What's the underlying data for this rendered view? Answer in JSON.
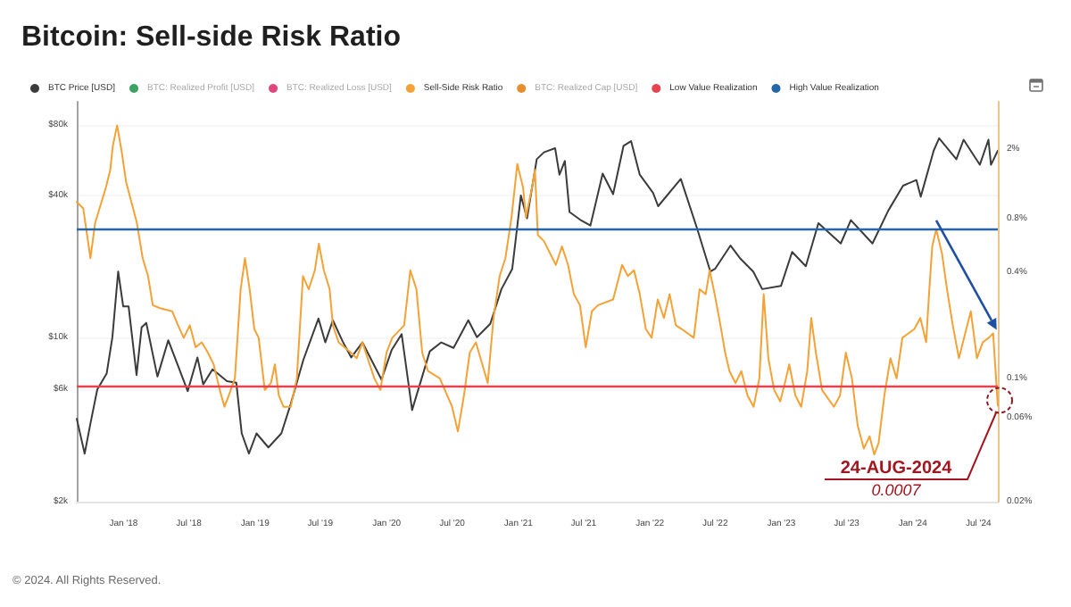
{
  "chart_data": [
    {
      "type": "line",
      "title": "Bitcoin: Sell-side Risk Ratio",
      "annotations": [
        "© 2024. All Rights Reserved."
      ],
      "xlim": [
        "2017-08-24",
        "2024-08-24"
      ],
      "xticks": [
        {
          "value": "2018-01-01",
          "label": "Jan '18"
        },
        {
          "value": "2018-07-01",
          "label": "Jul '18"
        },
        {
          "value": "2019-01-01",
          "label": "Jan '19"
        },
        {
          "value": "2019-07-01",
          "label": "Jul '19"
        },
        {
          "value": "2020-01-01",
          "label": "Jan '20"
        },
        {
          "value": "2020-07-01",
          "label": "Jul '20"
        },
        {
          "value": "2021-01-01",
          "label": "Jan '21"
        },
        {
          "value": "2021-07-01",
          "label": "Jul '21"
        },
        {
          "value": "2022-01-01",
          "label": "Jan '22"
        },
        {
          "value": "2022-07-01",
          "label": "Jul '22"
        },
        {
          "value": "2023-01-01",
          "label": "Jan '23"
        },
        {
          "value": "2023-07-01",
          "label": "Jul '23"
        },
        {
          "value": "2024-01-01",
          "label": "Jan '24"
        },
        {
          "value": "2024-07-01",
          "label": "Jul '24"
        }
      ],
      "ylim": [
        2000,
        100000
      ],
      "yticks": [
        {
          "value": 2000,
          "label": "$2k"
        },
        {
          "value": 6000,
          "label": "$6k"
        },
        {
          "value": 10000,
          "label": "$10k"
        },
        {
          "value": 40000,
          "label": "$40k"
        },
        {
          "value": 80000,
          "label": "$80k"
        }
      ],
      "log": "y",
      "grid": "y",
      "legend": "top",
      "marker": "none",
      "series": [
        {
          "name": "BTC Price [USD]",
          "color": "#3b3b3b",
          "x": [
            "2017-08-24",
            "2017-09-15",
            "2017-10-01",
            "2017-10-20",
            "2017-11-15",
            "2017-12-01",
            "2017-12-17",
            "2017-12-31",
            "2018-01-15",
            "2018-02-06",
            "2018-02-20",
            "2018-03-05",
            "2018-04-05",
            "2018-05-05",
            "2018-06-28",
            "2018-07-25",
            "2018-08-10",
            "2018-09-05",
            "2018-10-15",
            "2018-11-10",
            "2018-11-25",
            "2018-12-15",
            "2019-01-05",
            "2019-02-07",
            "2019-03-15",
            "2019-04-10",
            "2019-05-15",
            "2019-06-26",
            "2019-07-15",
            "2019-08-05",
            "2019-09-01",
            "2019-09-25",
            "2019-10-26",
            "2019-12-18",
            "2020-01-15",
            "2020-02-12",
            "2020-03-12",
            "2020-04-30",
            "2020-06-01",
            "2020-07-05",
            "2020-08-15",
            "2020-09-08",
            "2020-10-15",
            "2020-11-15",
            "2020-12-15",
            "2021-01-08",
            "2021-01-25",
            "2021-02-21",
            "2021-03-13",
            "2021-04-13",
            "2021-04-25",
            "2021-05-10",
            "2021-05-23",
            "2021-06-22",
            "2021-07-20",
            "2021-08-23",
            "2021-09-21",
            "2021-10-20",
            "2021-11-10",
            "2021-12-04",
            "2022-01-10",
            "2022-01-24",
            "2022-03-28",
            "2022-05-12",
            "2022-06-18",
            "2022-07-01",
            "2022-08-13",
            "2022-09-10",
            "2022-10-15",
            "2022-11-09",
            "2022-12-31",
            "2023-01-31",
            "2023-03-10",
            "2023-04-14",
            "2023-06-15",
            "2023-07-13",
            "2023-09-11",
            "2023-10-25",
            "2023-12-05",
            "2024-01-11",
            "2024-01-23",
            "2024-02-28",
            "2024-03-14",
            "2024-05-01",
            "2024-05-21",
            "2024-07-05",
            "2024-07-29",
            "2024-08-05",
            "2024-08-24"
          ],
          "values": [
            4500,
            3200,
            4300,
            6000,
            7000,
            10000,
            19000,
            13500,
            13500,
            6900,
            11000,
            11500,
            6800,
            9700,
            5900,
            8200,
            6300,
            7300,
            6500,
            6400,
            3900,
            3200,
            3900,
            3400,
            3900,
            5200,
            8000,
            12000,
            9500,
            11800,
            9600,
            8200,
            9500,
            6600,
            8800,
            10300,
            4900,
            8700,
            9500,
            9000,
            11800,
            10000,
            11400,
            16000,
            19500,
            40000,
            32000,
            57000,
            61000,
            63500,
            49000,
            56000,
            34000,
            31500,
            29800,
            49500,
            40500,
            65000,
            68000,
            49000,
            41000,
            36000,
            47000,
            29000,
            19000,
            19500,
            24500,
            21500,
            19000,
            16000,
            16500,
            23000,
            20000,
            30500,
            25000,
            31400,
            25000,
            34500,
            44000,
            46500,
            39500,
            62000,
            70000,
            57000,
            69000,
            54000,
            69000,
            54000,
            62000
          ]
        },
        {
          "name": "BTC: Realized Profit [USD]",
          "color": "#3aa35f"
        },
        {
          "name": "BTC: Realized Loss [USD]",
          "color": "#e0457b"
        }
      ]
    },
    {
      "type": "line",
      "annotations": [
        {
          "text": "24-AUG-2024",
          "x": "2024-08-24",
          "y": 0.07
        },
        {
          "text": "0.0007",
          "x": "2024-08-24",
          "y": 0.07
        }
      ],
      "xlim": [
        "2017-08-24",
        "2024-08-24"
      ],
      "ylim": [
        0.02,
        3.7
      ],
      "yticks": [
        {
          "value": 0.02,
          "label": "0.02%"
        },
        {
          "value": 0.06,
          "label": "0.06%"
        },
        {
          "value": 0.1,
          "label": "0.1%"
        },
        {
          "value": 0.4,
          "label": "0.4%"
        },
        {
          "value": 0.8,
          "label": "0.8%"
        },
        {
          "value": 2,
          "label": "2%"
        }
      ],
      "tick_labels": "y",
      "log": "y",
      "legend": "top",
      "marker": "none",
      "series": [
        {
          "name": "Sell-Side Risk Ratio",
          "color": "#f4a236",
          "x": [
            "2017-08-24",
            "2017-09-11",
            "2017-10-01",
            "2017-10-14",
            "2017-11-13",
            "2017-11-25",
            "2017-12-02",
            "2017-12-14",
            "2017-12-27",
            "2018-01-08",
            "2018-01-21",
            "2018-02-07",
            "2018-02-23",
            "2018-03-10",
            "2018-03-23",
            "2018-04-12",
            "2018-05-16",
            "2018-06-01",
            "2018-06-17",
            "2018-07-04",
            "2018-07-20",
            "2018-08-06",
            "2018-08-23",
            "2018-09-08",
            "2018-09-25",
            "2018-10-08",
            "2018-10-20",
            "2018-11-06",
            "2018-11-22",
            "2018-12-04",
            "2018-12-17",
            "2018-12-30",
            "2019-01-11",
            "2019-01-28",
            "2019-02-14",
            "2019-02-25",
            "2019-03-08",
            "2019-03-21",
            "2019-04-10",
            "2019-04-27",
            "2019-05-14",
            "2019-05-30",
            "2019-06-16",
            "2019-06-27",
            "2019-07-11",
            "2019-07-27",
            "2019-08-05",
            "2019-08-21",
            "2019-09-24",
            "2019-10-10",
            "2019-10-26",
            "2019-11-28",
            "2019-12-15",
            "2020-01-01",
            "2020-01-17",
            "2020-02-19",
            "2020-03-07",
            "2020-03-24",
            "2020-04-09",
            "2020-04-25",
            "2020-05-28",
            "2020-07-01",
            "2020-07-17",
            "2020-08-03",
            "2020-08-19",
            "2020-09-05",
            "2020-10-08",
            "2020-10-24",
            "2020-11-10",
            "2020-11-26",
            "2020-12-13",
            "2020-12-29",
            "2021-01-14",
            "2021-01-22",
            "2021-02-08",
            "2021-02-16",
            "2021-02-24",
            "2021-03-13",
            "2021-04-15",
            "2021-05-02",
            "2021-05-19",
            "2021-06-04",
            "2021-06-21",
            "2021-07-07",
            "2021-07-24",
            "2021-08-10",
            "2021-09-21",
            "2021-10-16",
            "2021-11-01",
            "2021-11-18",
            "2021-12-04",
            "2021-12-21",
            "2022-01-06",
            "2022-01-23",
            "2022-02-09",
            "2022-02-25",
            "2022-03-14",
            "2022-03-31",
            "2022-05-03",
            "2022-05-19",
            "2022-06-05",
            "2022-06-16",
            "2022-06-30",
            "2022-07-16",
            "2022-07-29",
            "2022-08-10",
            "2022-08-27",
            "2022-09-12",
            "2022-09-29",
            "2022-10-16",
            "2022-11-01",
            "2022-11-13",
            "2022-11-26",
            "2022-12-12",
            "2022-12-29",
            "2023-01-14",
            "2023-01-23",
            "2023-02-09",
            "2023-02-25",
            "2023-03-14",
            "2023-03-25",
            "2023-04-07",
            "2023-04-24",
            "2023-05-27",
            "2023-06-13",
            "2023-06-29",
            "2023-07-16",
            "2023-08-01",
            "2023-08-18",
            "2023-09-03",
            "2023-09-16",
            "2023-09-28",
            "2023-10-14",
            "2023-10-31",
            "2023-11-17",
            "2023-12-03",
            "2024-01-05",
            "2024-01-22",
            "2024-02-07",
            "2024-02-15",
            "2024-02-24",
            "2024-03-06",
            "2024-03-22",
            "2024-04-05",
            "2024-04-21",
            "2024-05-08",
            "2024-06-10",
            "2024-06-27",
            "2024-07-13",
            "2024-07-30",
            "2024-08-11",
            "2024-08-24"
          ],
          "values": [
            1.0,
            0.92,
            0.48,
            0.76,
            1.21,
            1.52,
            2.07,
            2.72,
            1.92,
            1.3,
            1.03,
            0.76,
            0.48,
            0.38,
            0.26,
            0.25,
            0.24,
            0.2,
            0.17,
            0.2,
            0.15,
            0.16,
            0.14,
            0.12,
            0.086,
            0.069,
            0.08,
            0.1,
            0.32,
            0.48,
            0.32,
            0.19,
            0.17,
            0.086,
            0.094,
            0.12,
            0.08,
            0.069,
            0.069,
            0.1,
            0.38,
            0.32,
            0.41,
            0.58,
            0.41,
            0.32,
            0.2,
            0.16,
            0.14,
            0.13,
            0.16,
            0.1,
            0.086,
            0.14,
            0.17,
            0.2,
            0.41,
            0.32,
            0.14,
            0.11,
            0.1,
            0.069,
            0.05,
            0.08,
            0.14,
            0.16,
            0.094,
            0.22,
            0.38,
            0.48,
            0.82,
            1.64,
            1.21,
            0.82,
            1.21,
            1.52,
            0.65,
            0.6,
            0.44,
            0.56,
            0.44,
            0.3,
            0.26,
            0.15,
            0.24,
            0.26,
            0.28,
            0.44,
            0.38,
            0.41,
            0.3,
            0.19,
            0.17,
            0.28,
            0.22,
            0.3,
            0.2,
            0.19,
            0.17,
            0.32,
            0.3,
            0.41,
            0.3,
            0.2,
            0.14,
            0.11,
            0.094,
            0.11,
            0.08,
            0.069,
            0.1,
            0.3,
            0.13,
            0.086,
            0.074,
            0.1,
            0.12,
            0.08,
            0.069,
            0.11,
            0.22,
            0.14,
            0.086,
            0.069,
            0.08,
            0.14,
            0.1,
            0.054,
            0.04,
            0.047,
            0.037,
            0.043,
            0.08,
            0.13,
            0.1,
            0.17,
            0.19,
            0.22,
            0.16,
            0.3,
            0.56,
            0.7,
            0.51,
            0.32,
            0.2,
            0.13,
            0.24,
            0.13,
            0.16,
            0.17,
            0.18,
            0.07
          ]
        },
        {
          "name": "BTC: Realized Cap [USD]",
          "color": "#e58e2e"
        }
      ],
      "ref_lines": [
        {
          "axis": "y",
          "value": 0.09,
          "label": "Low Value Realization",
          "color": "#e8434c"
        },
        {
          "axis": "y",
          "value": 0.7,
          "label": "High Value Realization",
          "color": "#2466a8"
        }
      ]
    }
  ]
}
